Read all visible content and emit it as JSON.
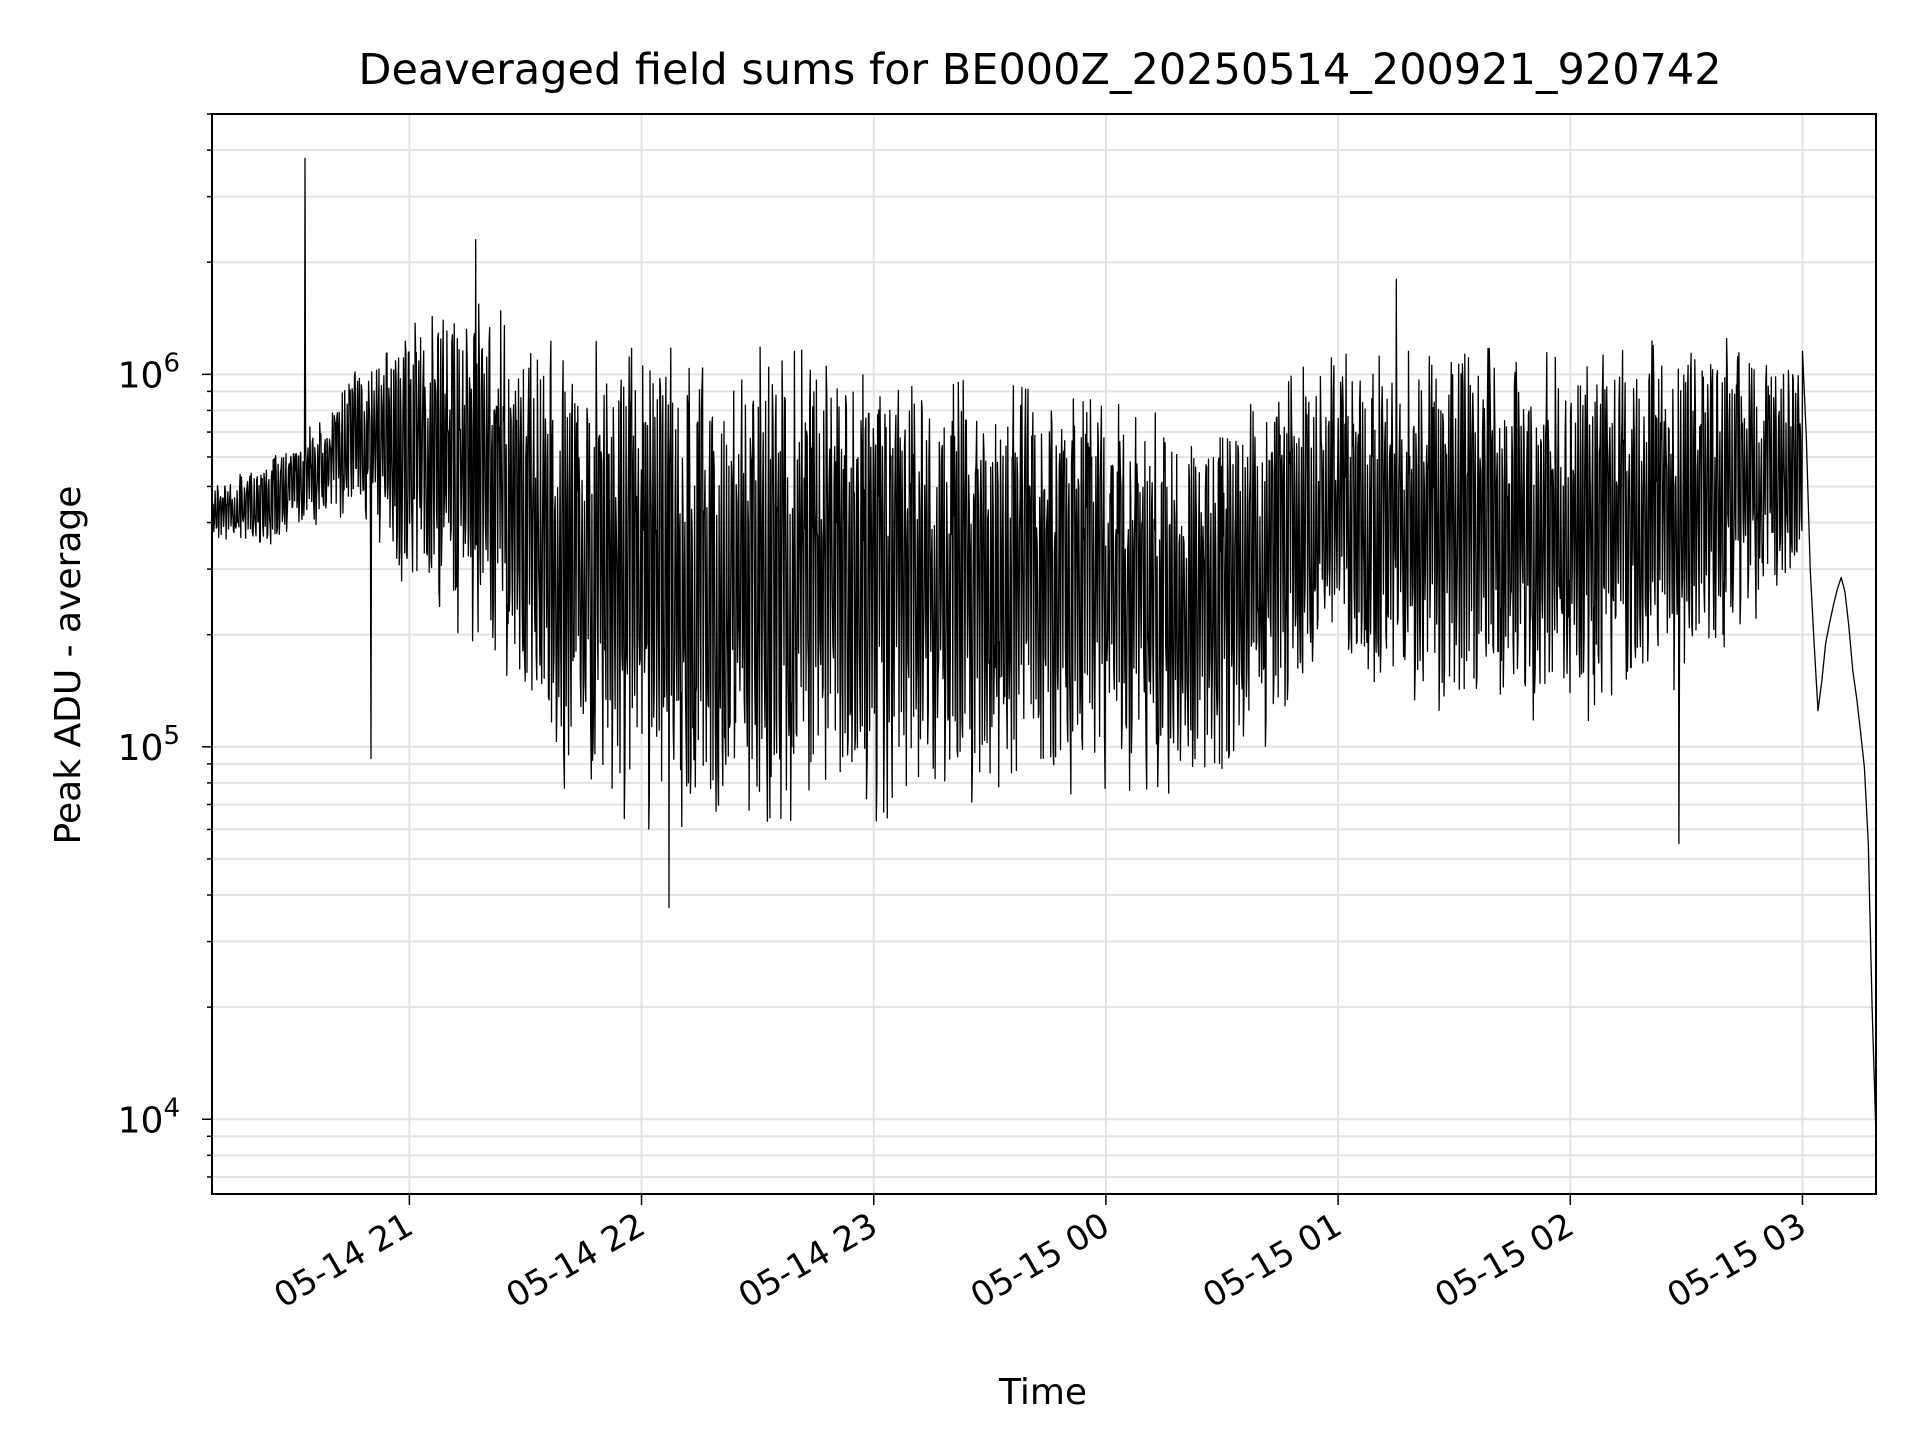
{
  "chart_data": {
    "type": "line",
    "title": "Deaveraged field sums for BE000Z_20250514_200921_920742",
    "xlabel": "Time",
    "ylabel": "Peak ADU - average",
    "yscale": "log",
    "xlim": [
      "2025-05-14 20:09",
      "2025-05-15 03:19"
    ],
    "ylim": [
      6300,
      5000000
    ],
    "grid": true,
    "x_ticks": [
      {
        "time": "2025-05-14 21:00",
        "label": "05-14 21"
      },
      {
        "time": "2025-05-14 22:00",
        "label": "05-14 22"
      },
      {
        "time": "2025-05-14 23:00",
        "label": "05-14 23"
      },
      {
        "time": "2025-05-15 00:00",
        "label": "05-15 00"
      },
      {
        "time": "2025-05-15 01:00",
        "label": "05-15 01"
      },
      {
        "time": "2025-05-15 02:00",
        "label": "05-15 02"
      },
      {
        "time": "2025-05-15 03:00",
        "label": "05-15 03"
      }
    ],
    "y_ticks": [
      {
        "value": 10000,
        "base": "10",
        "exp": "4"
      },
      {
        "value": 100000,
        "base": "10",
        "exp": "5"
      },
      {
        "value": 1000000,
        "base": "10",
        "exp": "6"
      }
    ],
    "line_color": "#000000",
    "grid_color": "#e3e3e3",
    "series": [
      {
        "envelope": [
          {
            "time": "2025-05-14 20:09",
            "low": 350000,
            "high": 520000
          },
          {
            "time": "2025-05-14 20:20",
            "low": 330000,
            "high": 560000
          },
          {
            "time": "2025-05-14 20:35",
            "low": 380000,
            "high": 750000
          },
          {
            "time": "2025-05-14 20:45",
            "low": 400000,
            "high": 1100000
          },
          {
            "time": "2025-05-14 21:00",
            "low": 250000,
            "high": 1500000
          },
          {
            "time": "2025-05-14 21:20",
            "low": 150000,
            "high": 1700000
          },
          {
            "time": "2025-05-14 21:40",
            "low": 70000,
            "high": 1400000
          },
          {
            "time": "2025-05-14 22:00",
            "low": 55000,
            "high": 1300000
          },
          {
            "time": "2025-05-14 22:30",
            "low": 55000,
            "high": 1300000
          },
          {
            "time": "2025-05-14 23:00",
            "low": 57000,
            "high": 1200000
          },
          {
            "time": "2025-05-14 23:30",
            "low": 62000,
            "high": 1050000
          },
          {
            "time": "2025-05-15 00:00",
            "low": 72000,
            "high": 900000
          },
          {
            "time": "2025-05-15 00:30",
            "low": 68000,
            "high": 800000
          },
          {
            "time": "2025-05-15 00:50",
            "low": 120000,
            "high": 1100000
          },
          {
            "time": "2025-05-15 01:00",
            "low": 140000,
            "high": 1200000
          },
          {
            "time": "2025-05-15 01:30",
            "low": 110000,
            "high": 1250000
          },
          {
            "time": "2025-05-15 02:00",
            "low": 105000,
            "high": 1250000
          },
          {
            "time": "2025-05-15 02:30",
            "low": 130000,
            "high": 1350000
          },
          {
            "time": "2025-05-15 02:55",
            "low": 250000,
            "high": 1300000
          },
          {
            "time": "2025-05-15 03:00",
            "low": 280000,
            "high": 1200000
          }
        ],
        "features": [
          {
            "time": "2025-05-14 20:33",
            "value": 3800000
          },
          {
            "time": "2025-05-14 21:17",
            "value": 2300000
          },
          {
            "time": "2025-05-14 20:50",
            "value": 93000
          },
          {
            "time": "2025-05-14 22:07",
            "value": 37000
          },
          {
            "time": "2025-05-15 01:15",
            "value": 1800000
          },
          {
            "time": "2025-05-15 02:28",
            "value": 55000
          }
        ],
        "tail": [
          {
            "time": "2025-05-15 03:01",
            "value": 680000
          },
          {
            "time": "2025-05-15 03:02",
            "value": 300000
          },
          {
            "time": "2025-05-15 03:03",
            "value": 190000
          },
          {
            "time": "2025-05-15 03:04",
            "value": 125000
          },
          {
            "time": "2025-05-15 03:05",
            "value": 150000
          },
          {
            "time": "2025-05-15 03:06",
            "value": 190000
          },
          {
            "time": "2025-05-15 03:07",
            "value": 215000
          },
          {
            "time": "2025-05-15 03:08",
            "value": 240000
          },
          {
            "time": "2025-05-15 03:09",
            "value": 265000
          },
          {
            "time": "2025-05-15 03:10",
            "value": 285000
          },
          {
            "time": "2025-05-15 03:11",
            "value": 260000
          },
          {
            "time": "2025-05-15 03:12",
            "value": 210000
          },
          {
            "time": "2025-05-15 03:13",
            "value": 160000
          },
          {
            "time": "2025-05-15 03:14",
            "value": 135000
          },
          {
            "time": "2025-05-15 03:15",
            "value": 110000
          },
          {
            "time": "2025-05-15 03:16",
            "value": 88000
          },
          {
            "time": "2025-05-15 03:17",
            "value": 55000
          },
          {
            "time": "2025-05-15 03:18",
            "value": 20000
          },
          {
            "time": "2025-05-15 03:19",
            "value": 9000
          }
        ]
      }
    ]
  }
}
